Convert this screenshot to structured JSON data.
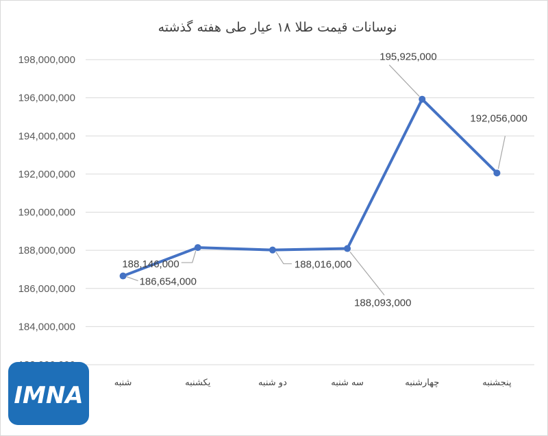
{
  "chart_data": {
    "type": "line",
    "title": "نوسانات قیمت طلا ۱۸ عیار طی هفته گذشته",
    "categories": [
      "شنبه",
      "یکشنبه",
      "دو شنبه",
      "سه شنبه",
      "چهارشنبه",
      "پنجشنبه"
    ],
    "values": [
      186654000,
      188146000,
      188016000,
      188093000,
      195925000,
      192056000
    ],
    "data_labels": [
      "186,654,000",
      "188,146,000",
      "188,016,000",
      "188,093,000",
      "195,925,000",
      "192,056,000"
    ],
    "ylim": [
      182000000,
      198000000
    ],
    "yticks": [
      198000000,
      196000000,
      194000000,
      192000000,
      190000000,
      188000000,
      186000000,
      184000000,
      182000000
    ],
    "ytick_labels": [
      "198,000,000",
      "196,000,000",
      "194,000,000",
      "192,000,000",
      "190,000,000",
      "188,000,000",
      "186,000,000",
      "184,000,000",
      "182,000,000"
    ],
    "grid": true,
    "line_color": "#4472c4",
    "grid_color": "#d9d9d9"
  },
  "logo": {
    "text": "IMNA",
    "color": "#1e6fb8"
  }
}
